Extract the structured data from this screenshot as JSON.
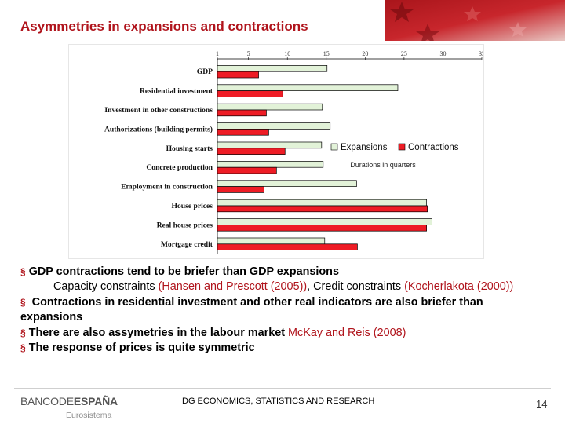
{
  "header": {
    "title": "Asymmetries in expansions and contractions"
  },
  "chart_data": {
    "type": "bar",
    "orientation": "horizontal",
    "categories": [
      "GDP",
      "Residential investment",
      "Investment in other constructions",
      "Authorizations (building permits)",
      "Housing starts",
      "Concrete production",
      "Employment in construction",
      "House prices",
      "Real house prices",
      "Mortgage credit"
    ],
    "series": [
      {
        "name": "Expansions",
        "color": "#e2f2d8",
        "values": [
          15.1,
          24.2,
          14.5,
          15.5,
          14.4,
          14.6,
          18.9,
          27.9,
          28.6,
          14.8
        ]
      },
      {
        "name": "Contractions",
        "color": "#ee1c25",
        "values": [
          6.3,
          9.4,
          7.3,
          7.6,
          9.7,
          8.6,
          7.0,
          28.0,
          27.9,
          19.0
        ]
      }
    ],
    "x_tick_labels": [
      "1",
      "5",
      "10",
      "15",
      "20",
      "25",
      "30",
      "35"
    ],
    "x_tick_values": [
      1,
      5,
      10,
      15,
      20,
      25,
      30,
      35
    ],
    "xlim": [
      1,
      35
    ],
    "axis_note": "Durations in quarters",
    "legend_position": "right-middle",
    "grid": false
  },
  "bullets": {
    "b1": "GDP contractions tend to be briefer than GDP expansions",
    "b1_sub_a": "Capacity constraints ",
    "b1_sub_ref1": "(Hansen and Prescott (2005))",
    "b1_sub_b": ", Credit constraints ",
    "b1_sub_ref2": "(Kocherlakota (2000))",
    "b2": " Contractions in residential investment and other real indicators are also briefer than expansions",
    "b3": "There are also assymetries in the labour market ",
    "b3_ref": "McKay and Reis (2008)",
    "b4": "The response of prices is quite symmetric"
  },
  "footer": {
    "logo_banco": "BANCODE",
    "logo_espana": "ESPAÑA",
    "logo_sub": "Eurosistema",
    "center_text": "DG ECONOMICS, STATISTICS AND RESEARCH",
    "page_number": "14"
  },
  "colors": {
    "accent": "#b0141c",
    "expansion": "#e2f2d8",
    "contraction": "#ee1c25"
  }
}
